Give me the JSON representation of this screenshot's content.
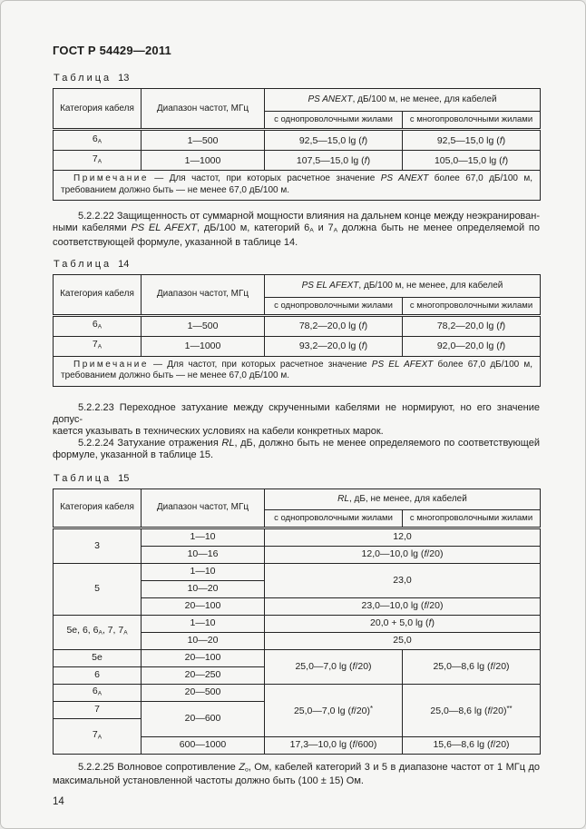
{
  "page": {
    "doc_code": "ГОСТ Р 54429—2011",
    "page_number": "14"
  },
  "labels": {
    "table_word": "Таблица",
    "t13": "13",
    "t14": "14",
    "t15": "15"
  },
  "common": {
    "col_category": "Категория кабеля",
    "col_freq": "Диапазон частот, МГц",
    "sub_single": "с однопроволочными жилами",
    "sub_multi": "с многопроволочными жилами"
  },
  "table13": {
    "title": [
      {
        "t": "PS ANEXT",
        "i": true
      },
      {
        "t": ", дБ/100 м, не менее, для кабелей"
      }
    ],
    "rows": [
      {
        "cat": [
          {
            "t": "6"
          },
          {
            "t": "А",
            "sub": true
          }
        ],
        "freq": "1—500",
        "v1": [
          {
            "t": "92,5—15,0 lg ("
          },
          {
            "t": "f",
            "i": true
          },
          {
            "t": ")"
          }
        ],
        "v2": [
          {
            "t": "92,5—15,0 lg ("
          },
          {
            "t": "f",
            "i": true
          },
          {
            "t": ")"
          }
        ]
      },
      {
        "cat": [
          {
            "t": "7"
          },
          {
            "t": "А",
            "sub": true
          }
        ],
        "freq": "1—1000",
        "v1": [
          {
            "t": "107,5—15,0 lg ("
          },
          {
            "t": "f",
            "i": true
          },
          {
            "t": ")"
          }
        ],
        "v2": [
          {
            "t": "105,0—15,0 lg ("
          },
          {
            "t": "f",
            "i": true
          },
          {
            "t": ")"
          }
        ]
      }
    ],
    "note": [
      {
        "t": "Примечание",
        "ls": true
      },
      {
        "t": " — Для частот, при которых расчетное значение "
      },
      {
        "t": "PS ANEXT",
        "i": true
      },
      {
        "t": " более 67,0 дБ/100 м,"
      },
      {
        "br": true
      },
      {
        "t": "требованием должно быть — не менее 67,0 дБ/100 м."
      }
    ]
  },
  "table14": {
    "title": [
      {
        "t": "PS EL AFEXT",
        "i": true
      },
      {
        "t": ", дБ/100 м, не менее, для кабелей"
      }
    ],
    "rows": [
      {
        "cat": [
          {
            "t": "6"
          },
          {
            "t": "А",
            "sub": true
          }
        ],
        "freq": "1—500",
        "v1": [
          {
            "t": "78,2—20,0 lg ("
          },
          {
            "t": "f",
            "i": true
          },
          {
            "t": ")"
          }
        ],
        "v2": [
          {
            "t": "78,2—20,0 lg ("
          },
          {
            "t": "f",
            "i": true
          },
          {
            "t": ")"
          }
        ]
      },
      {
        "cat": [
          {
            "t": "7"
          },
          {
            "t": "А",
            "sub": true
          }
        ],
        "freq": "1—1000",
        "v1": [
          {
            "t": "93,2—20,0 lg ("
          },
          {
            "t": "f",
            "i": true
          },
          {
            "t": ")"
          }
        ],
        "v2": [
          {
            "t": "92,0—20,0 lg ("
          },
          {
            "t": "f",
            "i": true
          },
          {
            "t": ")"
          }
        ]
      }
    ],
    "note": [
      {
        "t": "Примечание",
        "ls": true
      },
      {
        "t": " — Для частот, при которых расчетное значение "
      },
      {
        "t": "PS EL AFEXT",
        "i": true
      },
      {
        "t": " более 67,0 дБ/100 м,"
      },
      {
        "br": true
      },
      {
        "t": "требованием должно быть — не менее 67,0 дБ/100 м."
      }
    ]
  },
  "table15": {
    "title": [
      {
        "t": "RL",
        "i": true
      },
      {
        "t": ", дБ, не менее, для кабелей"
      }
    ],
    "c3": "3",
    "f1_10a": "1—10",
    "v12": "12,0",
    "f10_16": "10—16",
    "v12lg": [
      {
        "t": "12,0—10,0 lg ("
      },
      {
        "t": "f",
        "i": true
      },
      {
        "t": "/20)"
      }
    ],
    "c5": "5",
    "f1_10b": "1—10",
    "f10_20a": "10—20",
    "v23": "23,0",
    "f20_100a": "20—100",
    "v23lg": [
      {
        "t": "23,0—10,0 lg ("
      },
      {
        "t": "f",
        "i": true
      },
      {
        "t": "/20)"
      }
    ],
    "cgroup": [
      {
        "t": "5е, 6, 6"
      },
      {
        "t": "А",
        "sub": true
      },
      {
        "t": ", 7, 7"
      },
      {
        "t": "А",
        "sub": true
      }
    ],
    "f1_10c": "1—10",
    "v20lg": [
      {
        "t": "20,0 + 5,0 lg ("
      },
      {
        "t": "f",
        "i": true
      },
      {
        "t": ")"
      }
    ],
    "f10_20b": "10—20",
    "v25": "25,0",
    "c5e": "5е",
    "f20_100b": "20—100",
    "c6": "6",
    "f20_250": "20—250",
    "v25_7": [
      {
        "t": "25,0—7,0 lg ("
      },
      {
        "t": "f",
        "i": true
      },
      {
        "t": "/20)"
      }
    ],
    "v25_86": [
      {
        "t": "25,0—8,6 lg ("
      },
      {
        "t": "f",
        "i": true
      },
      {
        "t": "/20)"
      }
    ],
    "c6a": [
      {
        "t": "6"
      },
      {
        "t": "А",
        "sub": true
      }
    ],
    "f20_500": "20—500",
    "c7": "7",
    "f20_600": "20—600",
    "v25_7s": [
      {
        "t": "25,0—7,0 lg ("
      },
      {
        "t": "f",
        "i": true
      },
      {
        "t": "/20)"
      },
      {
        "t": "*",
        "sup": true
      }
    ],
    "v25_86s": [
      {
        "t": "25,0—8,6 lg ("
      },
      {
        "t": "f",
        "i": true
      },
      {
        "t": "/20)"
      },
      {
        "t": "**",
        "sup": true
      }
    ],
    "c7a": [
      {
        "t": "7"
      },
      {
        "t": "А",
        "sub": true
      }
    ],
    "f600_1000": "600—1000",
    "v17": [
      {
        "t": "17,3—10,0 lg ("
      },
      {
        "t": "f",
        "i": true
      },
      {
        "t": "/600)"
      }
    ],
    "v15": [
      {
        "t": "15,6—8,6 lg ("
      },
      {
        "t": "f",
        "i": true
      },
      {
        "t": "/20)"
      }
    ]
  },
  "paragraphs": {
    "p22": [
      {
        "t": "5.2.2.22 Защищенность от суммарной мощности влияния на дальнем конце между неэкранирован-"
      },
      {
        "br": true
      },
      {
        "t": "ными кабелями "
      },
      {
        "t": "PS EL AFEXT",
        "i": true
      },
      {
        "t": ", дБ/100 м, категорий 6"
      },
      {
        "t": "А",
        "sub": true
      },
      {
        "t": " и 7"
      },
      {
        "t": "А",
        "sub": true
      },
      {
        "t": " должна быть не менее определяемой по"
      },
      {
        "br": true
      },
      {
        "t": "соответствующей формуле, указанной в таблице 14."
      }
    ],
    "p23": [
      {
        "t": "5.2.2.23 Переходное затухание между скрученными кабелями не нормируют, но его значение допус-"
      },
      {
        "br": true
      },
      {
        "t": "кается указывать в технических условиях на кабели конкретных марок."
      }
    ],
    "p24": [
      {
        "t": "5.2.2.24 Затухание отражения "
      },
      {
        "t": "RL",
        "i": true
      },
      {
        "t": ", дБ, должно быть не менее определяемого по соответствующей"
      },
      {
        "br": true
      },
      {
        "t": "формуле, указанной в таблице 15."
      }
    ],
    "p25": [
      {
        "t": "5.2.2.25 Волновое сопротивление "
      },
      {
        "t": "Z",
        "i": true
      },
      {
        "t": "о",
        "sub": true
      },
      {
        "t": ", Ом, кабелей категорий 3 и 5 в диапазоне частот от 1 МГц до"
      },
      {
        "br": true
      },
      {
        "t": "максимальной установленной частоты должно быть (100 ± 15) Ом."
      }
    ]
  }
}
